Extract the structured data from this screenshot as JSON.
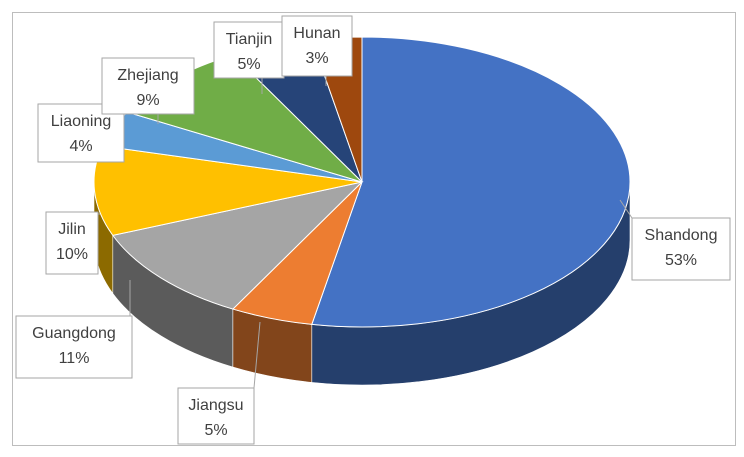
{
  "chart_data": {
    "type": "pie",
    "style": "3d-exploded-none",
    "categories": [
      "Shandong",
      "Jiangsu",
      "Guangdong",
      "Jilin",
      "Liaoning",
      "Zhejiang",
      "Tianjin",
      "Hunan"
    ],
    "values": [
      53,
      5,
      11,
      10,
      4,
      9,
      5,
      3
    ],
    "labels": [
      "53%",
      "5%",
      "11%",
      "10%",
      "4%",
      "9%",
      "5%",
      "3%"
    ],
    "colors": [
      "#4472C4",
      "#ED7D31",
      "#A5A5A5",
      "#FFC000",
      "#5B9BD5",
      "#70AD47",
      "#264478",
      "#9E480E"
    ],
    "title": "",
    "legend": "none",
    "data_labels": "category-and-percent-callouts"
  }
}
